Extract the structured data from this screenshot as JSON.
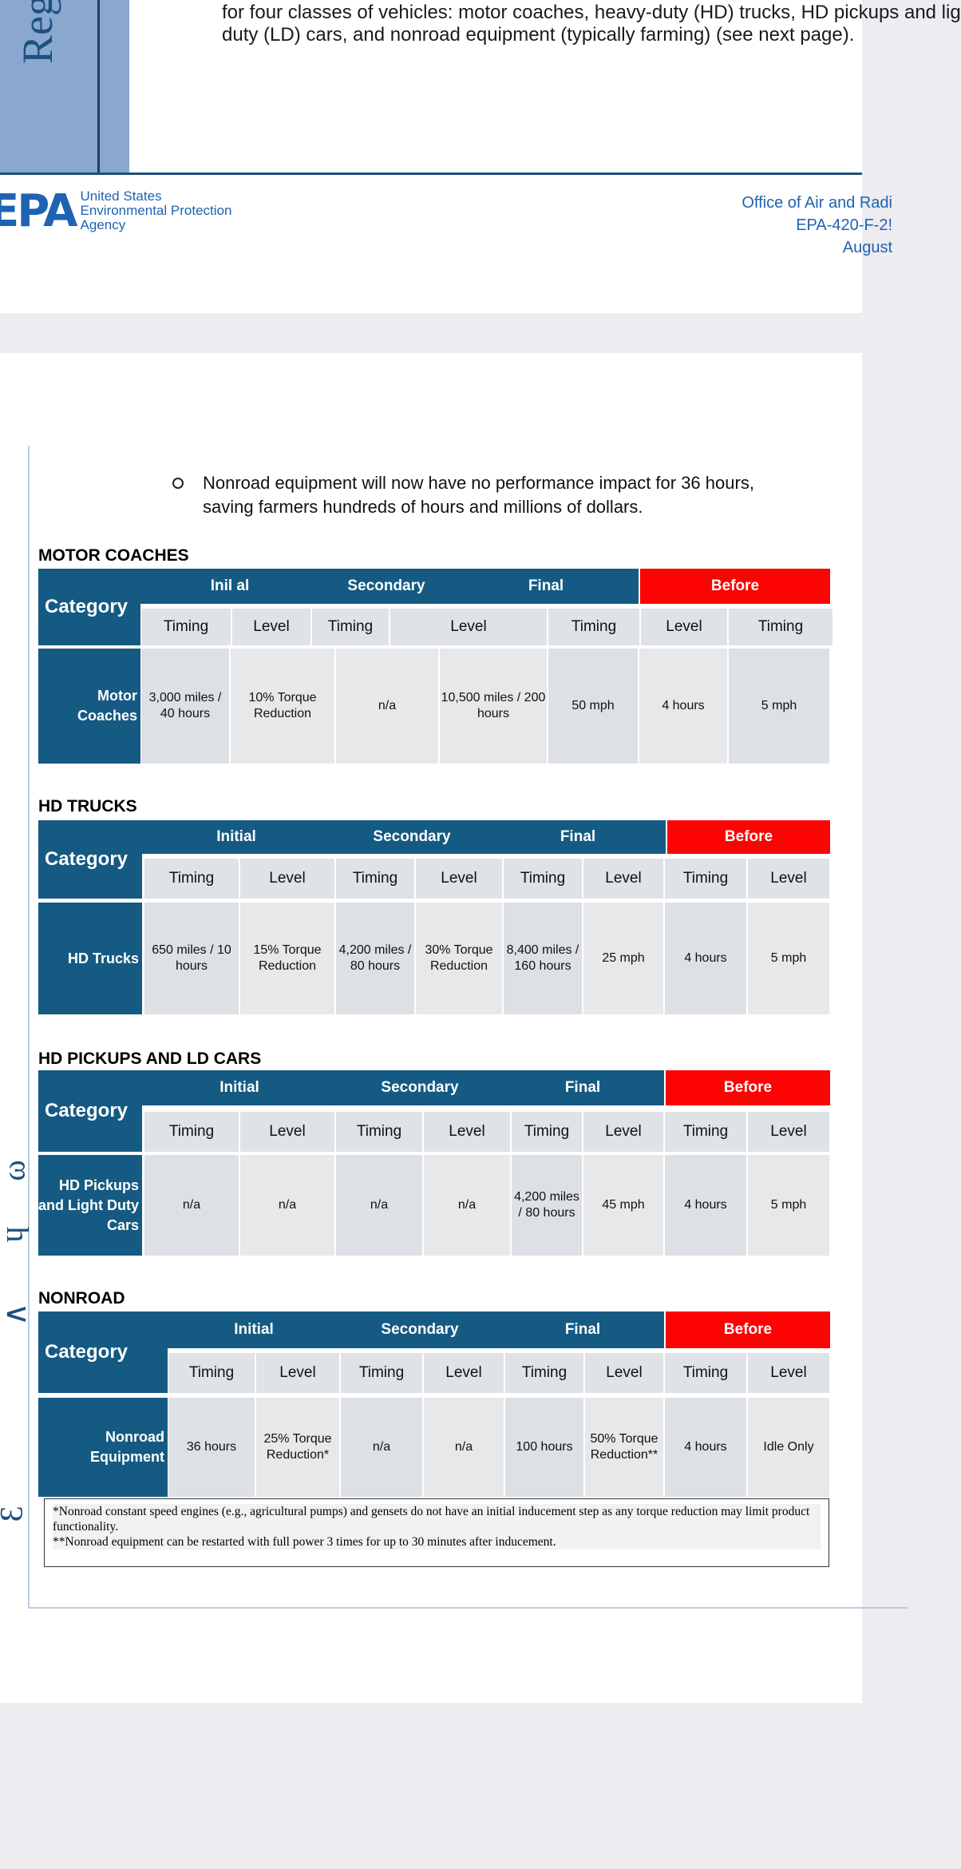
{
  "page1": {
    "vertical_text": "Reg",
    "body_lines": [
      "for four classes of vehicles: motor coaches, heavy-duty (HD) trucks, HD pickups and lig",
      "duty (LD) cars, and nonroad equipment (typically farming) (see next page)."
    ],
    "logo": {
      "mark": "EPA",
      "agency_lines": [
        "United States",
        "Environmental Protection",
        "Agency"
      ]
    },
    "office_lines": [
      "Office of  Air and Radi",
      "EPA-420-F-2!",
      "August"
    ]
  },
  "page2": {
    "side_glyphs": [
      "ω",
      "ɥ",
      "∧",
      "Ɛ"
    ],
    "bullet_text": "Nonroad equipment will now have no performance impact for 36 hours, saving farmers hundreds of hours and millions of dollars.",
    "header_category": "Category",
    "sub_timing": "Timing",
    "sub_level": "Level",
    "tables": [
      {
        "title": "MOTOR COACHES",
        "groups": [
          "Inil al",
          "Secondary",
          "Final",
          "Before"
        ],
        "row_label": "Motor Coaches",
        "cells": [
          "3,000 miles / 40 hours",
          "10% Torque Reduction",
          "n/a",
          "10,500 miles / 200 hours",
          "50 mph",
          "4 hours",
          "5 mph"
        ]
      },
      {
        "title": "HD TRUCKS",
        "groups": [
          "Initial",
          "Secondary",
          "Final",
          "Before"
        ],
        "row_label": "HD Trucks",
        "cells": [
          "650 miles / 10 hours",
          "15% Torque Reduction",
          "4,200 miles / 80 hours",
          "30% Torque Reduction",
          "8,400 miles / 160 hours",
          "25 mph",
          "4 hours",
          "5 mph"
        ]
      },
      {
        "title": "HD PICKUPS AND LD CARS",
        "groups": [
          "Initial",
          "Secondary",
          "Final",
          "Before"
        ],
        "row_label": "HD Pickups and Light Duty Cars",
        "cells": [
          "n/a",
          "n/a",
          "n/a",
          "n/a",
          "4,200 miles / 80 hours",
          "45 mph",
          "4 hours",
          "5 mph"
        ]
      },
      {
        "title": "NONROAD",
        "groups": [
          "Initial",
          "Secondary",
          "Final",
          "Before"
        ],
        "row_label": "Nonroad Equipment",
        "cells": [
          "36 hours",
          "25% Torque Reduction*",
          "n/a",
          "n/a",
          "100 hours",
          "50% Torque Reduction**",
          "4 hours",
          "Idle Only"
        ]
      }
    ],
    "footnotes": [
      "*Nonroad constant speed engines (e.g., agricultural pumps) and gensets do not have an initial inducement step as any torque reduction may limit product functionality.",
      "**Nonroad equipment can be restarted with full power 3 times for up to 30 minutes after inducement."
    ]
  },
  "colors": {
    "header_blue": "#155a82",
    "before_red": "#fc0404",
    "epa_blue": "#1e63b1",
    "cell_grey": "#dde0e4"
  }
}
